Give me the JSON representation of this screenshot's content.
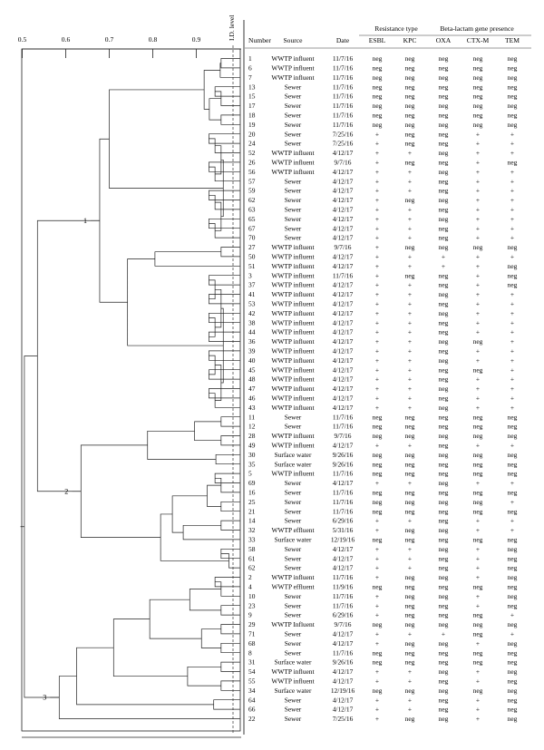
{
  "figure": {
    "id_level_label": "I.D. level",
    "scale_ticks": [
      "0.5",
      "0.6",
      "0.7",
      "0.8",
      "0.9"
    ],
    "cluster_labels": [
      "1",
      "2",
      "3"
    ],
    "header_groups": [
      {
        "label": "Resistance type"
      },
      {
        "label": "Beta-lactam gene presence"
      }
    ],
    "columns": [
      "Number",
      "Source",
      "Date",
      "ESBL",
      "KPC",
      "OXA",
      "CTX-M",
      "TEM"
    ]
  },
  "rows": [
    [
      "1",
      "WWTP influent",
      "11/7/16",
      "neg",
      "neg",
      "neg",
      "neg",
      "neg"
    ],
    [
      "6",
      "WWTP influent",
      "11/7/16",
      "neg",
      "neg",
      "neg",
      "neg",
      "neg"
    ],
    [
      "7",
      "WWTP influent",
      "11/7/16",
      "neg",
      "neg",
      "neg",
      "neg",
      "neg"
    ],
    [
      "13",
      "Sewer",
      "11/7/16",
      "neg",
      "neg",
      "neg",
      "neg",
      "neg"
    ],
    [
      "15",
      "Sewer",
      "11/7/16",
      "neg",
      "neg",
      "neg",
      "neg",
      "neg"
    ],
    [
      "17",
      "Sewer",
      "11/7/16",
      "neg",
      "neg",
      "neg",
      "neg",
      "neg"
    ],
    [
      "18",
      "Sewer",
      "11/7/16",
      "neg",
      "neg",
      "neg",
      "neg",
      "neg"
    ],
    [
      "19",
      "Sewer",
      "11/7/16",
      "neg",
      "neg",
      "neg",
      "neg",
      "neg"
    ],
    [
      "20",
      "Sewer",
      "7/25/16",
      "+",
      "neg",
      "neg",
      "+",
      "+"
    ],
    [
      "24",
      "Sewer",
      "7/25/16",
      "+",
      "neg",
      "neg",
      "+",
      "+"
    ],
    [
      "52",
      "WWTP influent",
      "4/12/17",
      "+",
      "+",
      "neg",
      "+",
      "+"
    ],
    [
      "26",
      "WWTP influent",
      "9/7/16",
      "+",
      "neg",
      "neg",
      "+",
      "neg"
    ],
    [
      "56",
      "WWTP influent",
      "4/12/17",
      "+",
      "+",
      "neg",
      "+",
      "+"
    ],
    [
      "57",
      "Sewer",
      "4/12/17",
      "+",
      "+",
      "neg",
      "+",
      "+"
    ],
    [
      "59",
      "Sewer",
      "4/12/17",
      "+",
      "+",
      "neg",
      "+",
      "+"
    ],
    [
      "62",
      "Sewer",
      "4/12/17",
      "+",
      "neg",
      "neg",
      "+",
      "+"
    ],
    [
      "63",
      "Sewer",
      "4/12/17",
      "+",
      "+",
      "neg",
      "+",
      "+"
    ],
    [
      "65",
      "Sewer",
      "4/12/17",
      "+",
      "+",
      "neg",
      "+",
      "+"
    ],
    [
      "67",
      "Sewer",
      "4/12/17",
      "+",
      "+",
      "neg",
      "+",
      "+"
    ],
    [
      "70",
      "Sewer",
      "4/12/17",
      "+",
      "+",
      "neg",
      "+",
      "+"
    ],
    [
      "27",
      "WWTP influent",
      "9/7/16",
      "+",
      "neg",
      "neg",
      "neg",
      "neg"
    ],
    [
      "50",
      "WWTP influent",
      "4/12/17",
      "+",
      "+",
      "+",
      "+",
      "+"
    ],
    [
      "51",
      "WWTP influent",
      "4/12/17",
      "+",
      "+",
      "+",
      "+",
      "neg"
    ],
    [
      "3",
      "WWTP influent",
      "11/7/16",
      "+",
      "neg",
      "neg",
      "+",
      "neg"
    ],
    [
      "37",
      "WWTP influent",
      "4/12/17",
      "+",
      "+",
      "neg",
      "+",
      "neg"
    ],
    [
      "41",
      "WWTP influent",
      "4/12/17",
      "+",
      "+",
      "neg",
      "+",
      "+"
    ],
    [
      "53",
      "WWTP influent",
      "4/12/17",
      "+",
      "+",
      "neg",
      "+",
      "+"
    ],
    [
      "42",
      "WWTP influent",
      "4/12/17",
      "+",
      "+",
      "neg",
      "+",
      "+"
    ],
    [
      "38",
      "WWTP influent",
      "4/12/17",
      "+",
      "+",
      "neg",
      "+",
      "+"
    ],
    [
      "44",
      "WWTP influent",
      "4/12/17",
      "+",
      "+",
      "neg",
      "+",
      "+"
    ],
    [
      "36",
      "WWTP influent",
      "4/12/17",
      "+",
      "+",
      "neg",
      "neg",
      "+"
    ],
    [
      "39",
      "WWTP influent",
      "4/12/17",
      "+",
      "+",
      "neg",
      "+",
      "+"
    ],
    [
      "40",
      "WWTP influent",
      "4/12/17",
      "+",
      "+",
      "neg",
      "+",
      "+"
    ],
    [
      "45",
      "WWTP influent",
      "4/12/17",
      "+",
      "+",
      "neg",
      "neg",
      "+"
    ],
    [
      "48",
      "WWTP influent",
      "4/12/17",
      "+",
      "+",
      "neg",
      "+",
      "+"
    ],
    [
      "47",
      "WWTP influent",
      "4/12/17",
      "+",
      "+",
      "neg",
      "+",
      "+"
    ],
    [
      "46",
      "WWTP influent",
      "4/12/17",
      "+",
      "+",
      "neg",
      "+",
      "+"
    ],
    [
      "43",
      "WWTP influent",
      "4/12/17",
      "+",
      "+",
      "neg",
      "+",
      "+"
    ],
    [
      "11",
      "Sewer",
      "11/7/16",
      "neg",
      "neg",
      "neg",
      "neg",
      "neg"
    ],
    [
      "12",
      "Sewer",
      "11/7/16",
      "neg",
      "neg",
      "neg",
      "neg",
      "neg"
    ],
    [
      "28",
      "WWTP influent",
      "9/7/16",
      "neg",
      "neg",
      "neg",
      "neg",
      "neg"
    ],
    [
      "49",
      "WWTP influent",
      "4/12/17",
      "+",
      "+",
      "neg",
      "+",
      "+"
    ],
    [
      "30",
      "Surface water",
      "9/26/16",
      "neg",
      "neg",
      "neg",
      "neg",
      "neg"
    ],
    [
      "35",
      "Surface water",
      "9/26/16",
      "neg",
      "neg",
      "neg",
      "neg",
      "neg"
    ],
    [
      "5",
      "WWTP influent",
      "11/7/16",
      "neg",
      "neg",
      "neg",
      "neg",
      "neg"
    ],
    [
      "69",
      "Sewer",
      "4/12/17",
      "+",
      "+",
      "neg",
      "+",
      "+"
    ],
    [
      "16",
      "Sewer",
      "11/7/16",
      "neg",
      "neg",
      "neg",
      "neg",
      "neg"
    ],
    [
      "25",
      "Sewer",
      "11/7/16",
      "neg",
      "neg",
      "neg",
      "neg",
      "+"
    ],
    [
      "21",
      "Sewer",
      "11/7/16",
      "neg",
      "neg",
      "neg",
      "neg",
      "neg"
    ],
    [
      "14",
      "Sewer",
      "6/29/16",
      "+",
      "+",
      "neg",
      "+",
      "+"
    ],
    [
      "32",
      "WWTP effluent",
      "5/31/16",
      "+",
      "neg",
      "neg",
      "+",
      "+"
    ],
    [
      "33",
      "Surface water",
      "12/19/16",
      "neg",
      "neg",
      "neg",
      "neg",
      "neg"
    ],
    [
      "58",
      "Sewer",
      "4/12/17",
      "+",
      "+",
      "neg",
      "+",
      "neg"
    ],
    [
      "61",
      "Sewer",
      "4/12/17",
      "+",
      "+",
      "neg",
      "+",
      "neg"
    ],
    [
      "62",
      "Sewer",
      "4/12/17",
      "+",
      "+",
      "neg",
      "+",
      "neg"
    ],
    [
      "2",
      "WWTP influent",
      "11/7/16",
      "+",
      "neg",
      "neg",
      "+",
      "neg"
    ],
    [
      "4",
      "WWTP effluent",
      "11/9/16",
      "neg",
      "neg",
      "neg",
      "neg",
      "neg"
    ],
    [
      "10",
      "Sewer",
      "11/7/16",
      "+",
      "neg",
      "neg",
      "+",
      "neg"
    ],
    [
      "23",
      "Sewer",
      "11/7/16",
      "+",
      "neg",
      "neg",
      "+",
      "neg"
    ],
    [
      "9",
      "Sewer",
      "6/29/16",
      "+",
      "neg",
      "neg",
      "neg",
      "+"
    ],
    [
      "29",
      "WWTP Influent",
      "9/7/16",
      "neg",
      "neg",
      "neg",
      "neg",
      "neg"
    ],
    [
      "71",
      "Sewer",
      "4/12/17",
      "+",
      "+",
      "+",
      "neg",
      "+"
    ],
    [
      "68",
      "Sewer",
      "4/12/17",
      "+",
      "neg",
      "neg",
      "+",
      "neg"
    ],
    [
      "8",
      "Sewer",
      "11/7/16",
      "neg",
      "neg",
      "neg",
      "neg",
      "neg"
    ],
    [
      "31",
      "Surface water",
      "9/26/16",
      "neg",
      "neg",
      "neg",
      "neg",
      "neg"
    ],
    [
      "54",
      "WWTP influent",
      "4/12/17",
      "+",
      "+",
      "neg",
      "+",
      "neg"
    ],
    [
      "55",
      "WWTP influent",
      "4/12/17",
      "+",
      "+",
      "neg",
      "+",
      "neg"
    ],
    [
      "34",
      "Surface water",
      "12/19/16",
      "neg",
      "neg",
      "neg",
      "neg",
      "neg"
    ],
    [
      "64",
      "Sewer",
      "4/12/17",
      "+",
      "+",
      "neg",
      "+",
      "neg"
    ],
    [
      "66",
      "Sewer",
      "4/12/17",
      "+",
      "+",
      "neg",
      "+",
      "neg"
    ],
    [
      "22",
      "Sewer",
      "7/25/16",
      "+",
      "neg",
      "neg",
      "+",
      "neg"
    ]
  ]
}
